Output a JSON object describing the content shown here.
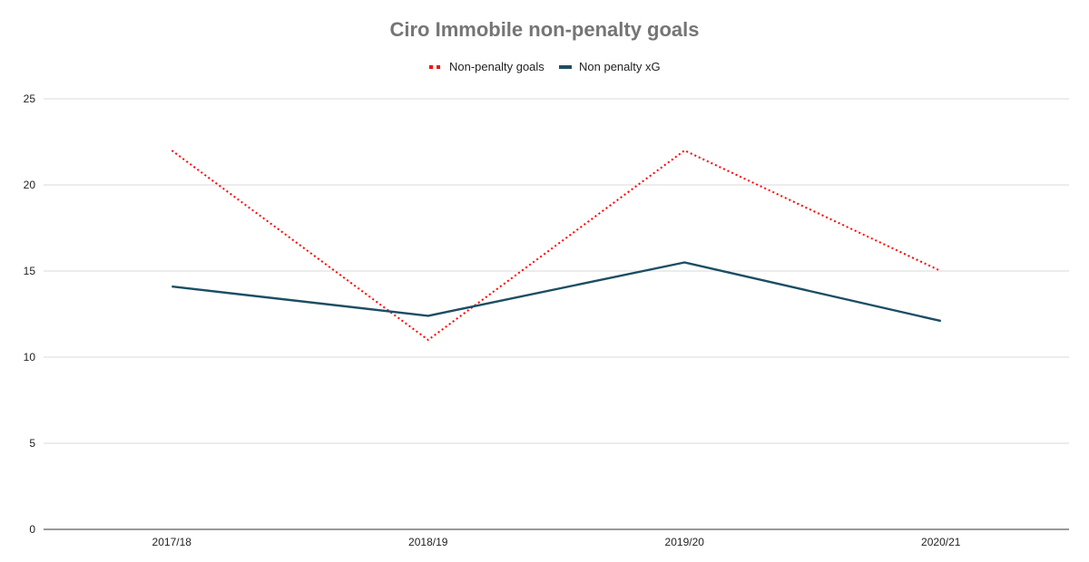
{
  "chart_data": {
    "type": "line",
    "title": "Ciro Immobile non-penalty goals",
    "xlabel": "",
    "ylabel": "",
    "categories": [
      "2017/18",
      "2018/19",
      "2019/20",
      "2020/21"
    ],
    "yticks": [
      0,
      5,
      10,
      15,
      20,
      25
    ],
    "ylim": [
      0,
      25
    ],
    "grid": true,
    "legend_position": "top",
    "series": [
      {
        "name": "Non-penalty goals",
        "values": [
          22,
          11,
          22,
          15
        ],
        "color": "#ff0000",
        "style": "dotted"
      },
      {
        "name": "Non penalty xG",
        "values": [
          14.1,
          12.4,
          15.5,
          12.1
        ],
        "color": "#1c4e63",
        "style": "solid"
      }
    ]
  }
}
